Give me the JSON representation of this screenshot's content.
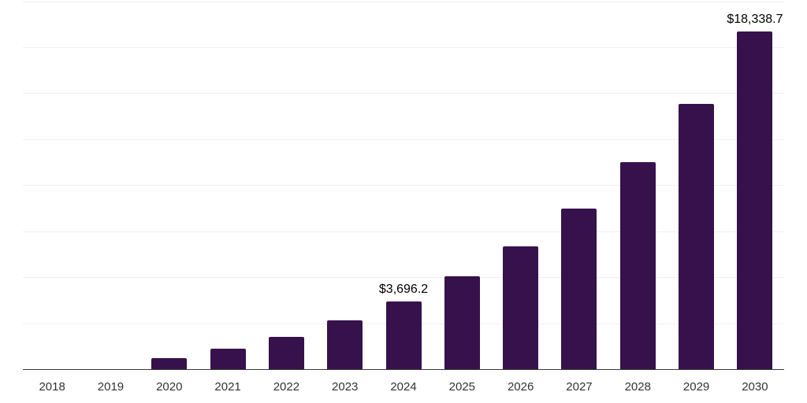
{
  "chart_data": {
    "type": "bar",
    "title": "",
    "xlabel": "",
    "ylabel": "",
    "categories": [
      "2018",
      "2019",
      "2020",
      "2021",
      "2022",
      "2023",
      "2024",
      "2025",
      "2026",
      "2027",
      "2028",
      "2029",
      "2030"
    ],
    "values": [
      0,
      0,
      600,
      1100,
      1740,
      2640,
      3696.2,
      5030,
      6660,
      8740,
      11260,
      14420,
      18338.7
    ],
    "data_labels": {
      "2024": "$3,696.2",
      "2030": "$18,338.7"
    },
    "ylim": [
      0,
      20000
    ],
    "gridline_step": 2500,
    "grid": true,
    "legend": false,
    "y_axis_labels_visible": false
  },
  "colors": {
    "bar": "#36114c",
    "gridline": "#efefef",
    "axis": "#3a3a3a",
    "tick_label": "#333333",
    "data_label": "#000000",
    "background": "#ffffff"
  }
}
